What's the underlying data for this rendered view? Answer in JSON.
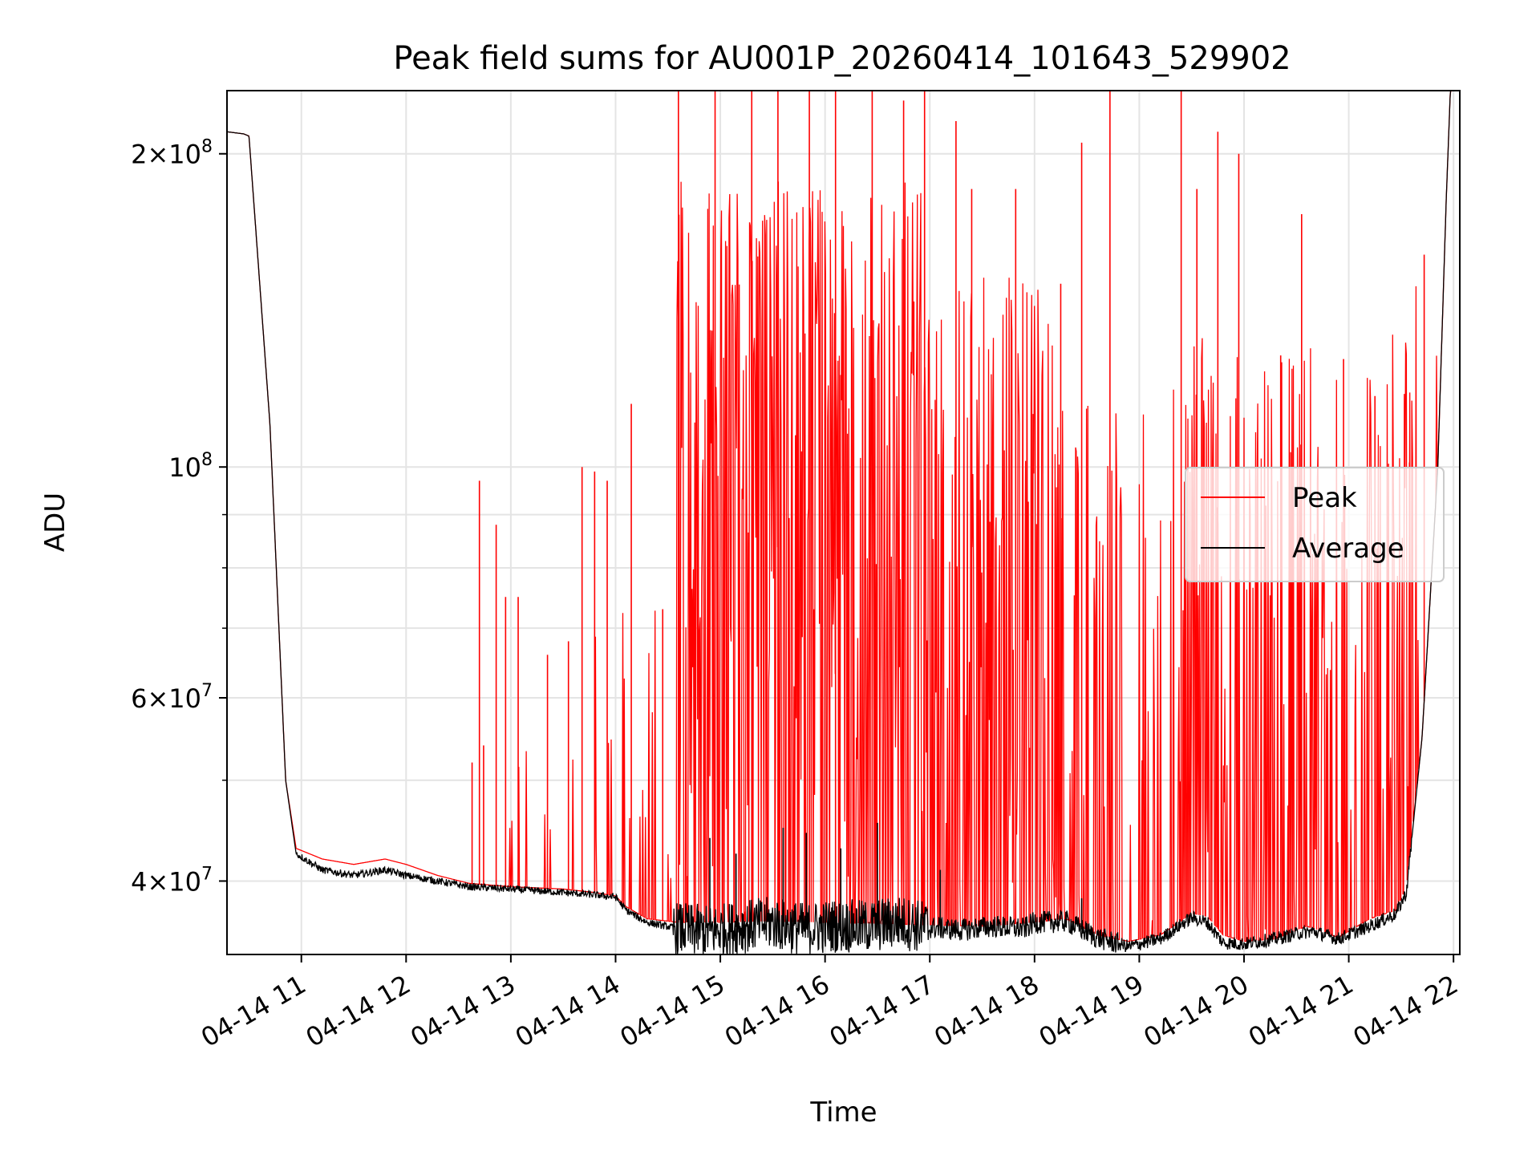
{
  "chart_data": {
    "type": "line",
    "title": "Peak field sums for AU001P_20260414_101643_529902",
    "xlabel": "Time",
    "ylabel": "ADU",
    "yscale": "log",
    "ylim": [
      34000000,
      230000000
    ],
    "xlim_hours": [
      10.29,
      22.06
    ],
    "grid": true,
    "legend_position": "center-right",
    "x_ticks": [
      {
        "value": 11,
        "label": "04-14 11"
      },
      {
        "value": 12,
        "label": "04-14 12"
      },
      {
        "value": 13,
        "label": "04-14 13"
      },
      {
        "value": 14,
        "label": "04-14 14"
      },
      {
        "value": 15,
        "label": "04-14 15"
      },
      {
        "value": 16,
        "label": "04-14 16"
      },
      {
        "value": 17,
        "label": "04-14 17"
      },
      {
        "value": 18,
        "label": "04-14 18"
      },
      {
        "value": 19,
        "label": "04-14 19"
      },
      {
        "value": 20,
        "label": "04-14 20"
      },
      {
        "value": 21,
        "label": "04-14 21"
      },
      {
        "value": 22,
        "label": "04-14 22"
      }
    ],
    "y_ticks": [
      {
        "value": 40000000,
        "mantissa": "4",
        "exp": "7"
      },
      {
        "value": 60000000,
        "mantissa": "6",
        "exp": "7"
      },
      {
        "value": 100000000,
        "mantissa": "",
        "exp": "8"
      },
      {
        "value": 200000000,
        "mantissa": "2",
        "exp": "8"
      }
    ],
    "y_minor_ticks": [
      50000000,
      70000000,
      80000000,
      90000000
    ],
    "series": [
      {
        "name": "Peak",
        "color": "#ff0000",
        "baseline_x": [
          10.29,
          10.45,
          10.5,
          10.7,
          10.85,
          10.95,
          11.2,
          11.5,
          11.8,
          12.0,
          12.3,
          12.6,
          13.0,
          13.5,
          13.8,
          14.0,
          14.1,
          14.3,
          14.6,
          15.0,
          15.5,
          16.0,
          16.5,
          17.0,
          17.5,
          18.0,
          18.3,
          18.6,
          18.9,
          19.2,
          19.5,
          19.65,
          19.8,
          20.0,
          20.3,
          20.6,
          20.9,
          21.2,
          21.45,
          21.55,
          21.7,
          21.85,
          21.93,
          21.97
        ],
        "baseline_y": [
          210000000,
          209000000,
          208000000,
          110000000,
          50000000,
          43000000,
          42000000,
          41500000,
          42000000,
          41500000,
          40500000,
          39800000,
          39500000,
          39300000,
          39000000,
          38700000,
          37800000,
          36800000,
          36500000,
          36500000,
          36600000,
          36500000,
          36400000,
          36300000,
          36200000,
          36500000,
          36800000,
          35500000,
          35000000,
          35500000,
          37200000,
          37000000,
          35500000,
          35000000,
          35200000,
          36200000,
          35300000,
          36800000,
          37500000,
          39500000,
          55000000,
          100000000,
          180000000,
          230000000
        ],
        "spikes": [
          {
            "x": 12.63,
            "y": 52000000
          },
          {
            "x": 12.7,
            "y": 97000000
          },
          {
            "x": 12.74,
            "y": 54000000
          },
          {
            "x": 12.86,
            "y": 88000000
          },
          {
            "x": 12.95,
            "y": 75000000
          },
          {
            "x": 13.07,
            "y": 75000000
          },
          {
            "x": 13.35,
            "y": 66000000
          },
          {
            "x": 13.55,
            "y": 68000000
          },
          {
            "x": 13.68,
            "y": 100000000
          },
          {
            "x": 13.8,
            "y": 99000000
          },
          {
            "x": 13.92,
            "y": 97000000
          },
          {
            "x": 14.15,
            "y": 115000000
          },
          {
            "x": 14.45,
            "y": 73000000
          },
          {
            "x": 14.6,
            "y": 230000000
          },
          {
            "x": 14.95,
            "y": 230000000
          },
          {
            "x": 15.3,
            "y": 230000000
          },
          {
            "x": 15.55,
            "y": 230000000
          },
          {
            "x": 15.85,
            "y": 230000000
          },
          {
            "x": 16.1,
            "y": 230000000
          },
          {
            "x": 16.45,
            "y": 230000000
          },
          {
            "x": 16.75,
            "y": 225000000
          },
          {
            "x": 16.95,
            "y": 230000000
          },
          {
            "x": 17.25,
            "y": 215000000
          },
          {
            "x": 17.4,
            "y": 185000000
          },
          {
            "x": 17.82,
            "y": 185000000
          },
          {
            "x": 18.25,
            "y": 150000000
          },
          {
            "x": 18.45,
            "y": 205000000
          },
          {
            "x": 18.72,
            "y": 230000000
          },
          {
            "x": 19.4,
            "y": 230000000
          },
          {
            "x": 19.55,
            "y": 185000000
          },
          {
            "x": 19.75,
            "y": 210000000
          },
          {
            "x": 19.95,
            "y": 200000000
          },
          {
            "x": 20.35,
            "y": 128000000
          },
          {
            "x": 20.55,
            "y": 175000000
          },
          {
            "x": 20.95,
            "y": 127000000
          },
          {
            "x": 21.25,
            "y": 117000000
          },
          {
            "x": 21.58,
            "y": 101000000
          },
          {
            "x": 21.72,
            "y": 160000000
          }
        ]
      },
      {
        "name": "Average",
        "color": "#000000",
        "x": [
          10.29,
          10.45,
          10.5,
          10.7,
          10.85,
          10.95,
          11.2,
          11.5,
          11.8,
          12.0,
          12.3,
          12.6,
          13.0,
          13.5,
          13.8,
          14.0,
          14.1,
          14.3,
          14.6,
          14.9,
          15.2,
          15.5,
          15.8,
          16.1,
          16.4,
          16.7,
          17.0,
          17.3,
          17.6,
          17.9,
          18.0,
          18.3,
          18.6,
          18.9,
          19.2,
          19.5,
          19.65,
          19.8,
          20.0,
          20.3,
          20.5,
          20.65,
          20.9,
          21.2,
          21.45,
          21.55,
          21.7,
          21.85,
          21.93,
          21.97
        ],
        "y": [
          210000000,
          209000000,
          208000000,
          110000000,
          50000000,
          42500000,
          41000000,
          40500000,
          41000000,
          40500000,
          40000000,
          39500000,
          39300000,
          39000000,
          38800000,
          38600000,
          37500000,
          36500000,
          36000000,
          35800000,
          36200000,
          36500000,
          36000000,
          36300000,
          36200000,
          36600000,
          36100000,
          35900000,
          36200000,
          36000000,
          36500000,
          36600000,
          35300000,
          34600000,
          35200000,
          36900000,
          36500000,
          34900000,
          34800000,
          35200000,
          35600000,
          35800000,
          35200000,
          36200000,
          37200000,
          39000000,
          55000000,
          100000000,
          180000000,
          230000000
        ],
        "spikes": [
          {
            "x": 14.9,
            "y": 44000000
          },
          {
            "x": 15.15,
            "y": 42500000
          },
          {
            "x": 15.6,
            "y": 45000000
          },
          {
            "x": 15.82,
            "y": 44500000
          },
          {
            "x": 16.15,
            "y": 43000000
          },
          {
            "x": 16.5,
            "y": 45500000
          },
          {
            "x": 17.1,
            "y": 41000000
          },
          {
            "x": 18.45,
            "y": 38500000
          }
        ]
      }
    ]
  }
}
